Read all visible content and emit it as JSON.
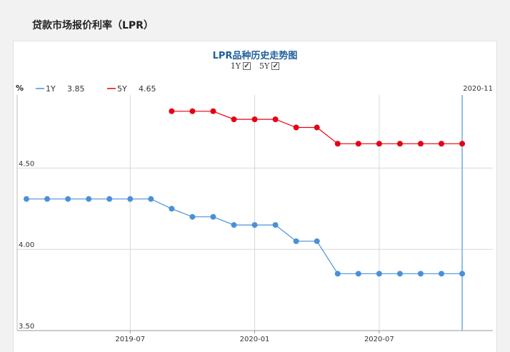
{
  "page": {
    "title": "贷款市场报价利率（LPR）"
  },
  "toggles": [
    {
      "label": "1Y",
      "checked": true
    },
    {
      "label": "5Y",
      "checked": true
    }
  ],
  "chart_data": {
    "type": "line",
    "title": "LPR品种历史走势图",
    "ylabel": "%",
    "ylim": [
      3.5,
      4.95
    ],
    "yticks": [
      3.5,
      4.0,
      4.5
    ],
    "ytick_labels": [
      "3.50",
      "4.00",
      "4.50"
    ],
    "x": [
      "2019-02",
      "2019-03",
      "2019-04",
      "2019-05",
      "2019-06",
      "2019-07",
      "2019-08",
      "2019-09",
      "2019-10",
      "2019-11",
      "2019-12",
      "2020-01",
      "2020-02",
      "2020-03",
      "2020-04",
      "2020-05",
      "2020-06",
      "2020-07",
      "2020-08",
      "2020-09",
      "2020-10",
      "2020-11"
    ],
    "xticks": [
      "2019-07",
      "2020-01",
      "2020-07"
    ],
    "grid": true,
    "cursor": {
      "x": "2020-11",
      "label": "2020-11"
    },
    "series": [
      {
        "name": "1Y",
        "color": "#4a90d9",
        "current": "3.85",
        "values": [
          4.31,
          4.31,
          4.31,
          4.31,
          4.31,
          4.31,
          4.31,
          4.25,
          4.2,
          4.2,
          4.15,
          4.15,
          4.15,
          4.05,
          4.05,
          3.85,
          3.85,
          3.85,
          3.85,
          3.85,
          3.85,
          3.85
        ]
      },
      {
        "name": "5Y",
        "color": "#e60012",
        "current": "4.65",
        "values": [
          null,
          null,
          null,
          null,
          null,
          null,
          null,
          4.85,
          4.85,
          4.85,
          4.8,
          4.8,
          4.8,
          4.75,
          4.75,
          4.65,
          4.65,
          4.65,
          4.65,
          4.65,
          4.65,
          4.65
        ]
      }
    ]
  }
}
